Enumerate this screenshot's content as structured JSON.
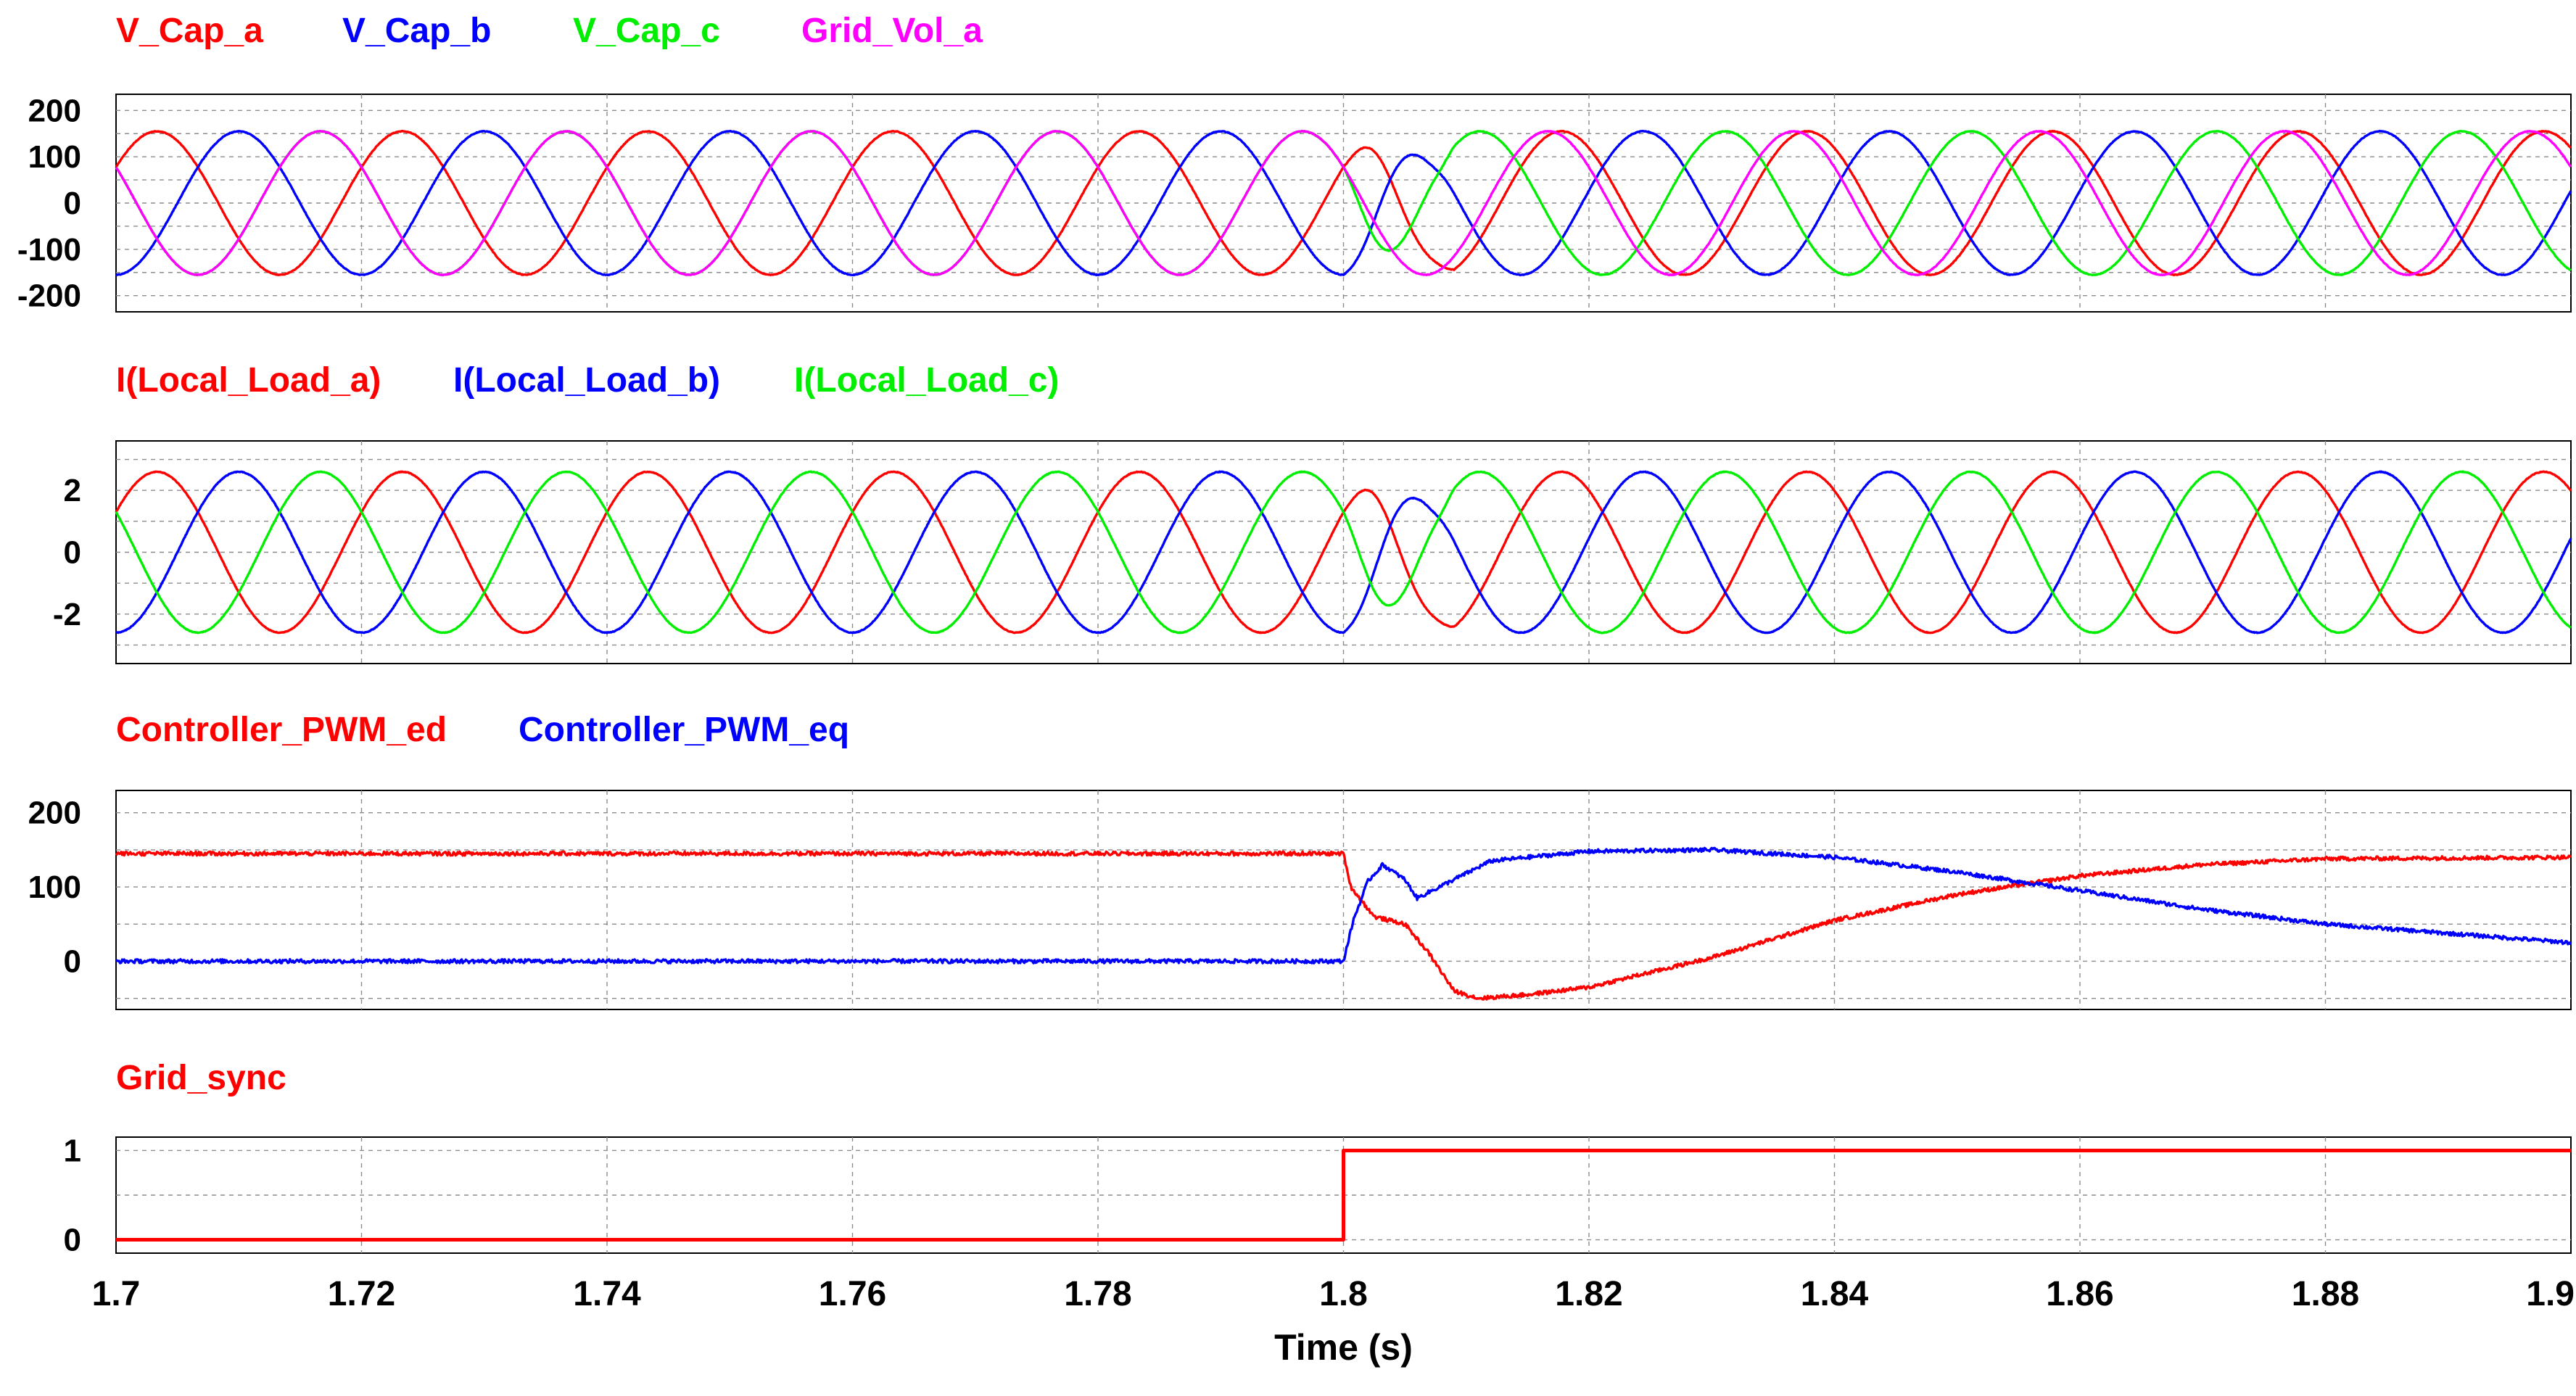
{
  "chart_data": {
    "type": "line",
    "x_axis": {
      "label": "Time (s)",
      "range": [
        1.7,
        1.9
      ],
      "ticks": [
        1.7,
        1.72,
        1.74,
        1.76,
        1.78,
        1.8,
        1.82,
        1.84,
        1.86,
        1.88,
        1.9
      ],
      "tick_labels": [
        "1.7",
        "1.72",
        "1.74",
        "1.76",
        "1.78",
        "1.8",
        "1.82",
        "1.84",
        "1.86",
        "1.88",
        "1.9"
      ]
    },
    "event_time": 1.8,
    "grid": true,
    "panels": [
      {
        "id": "capacitor-voltage",
        "ylim": [
          -235,
          235
        ],
        "yticks": [
          200,
          100,
          0,
          -100,
          -200
        ],
        "ytick_labels": [
          "200",
          "100",
          "0",
          "-100",
          "-200"
        ],
        "series": [
          {
            "name": "V_Cap_a",
            "color": "#ff0000",
            "amplitude": 155,
            "freq_hz": 50,
            "phase_deg": 30,
            "post_phase_deg": 130,
            "transient": "phase_jump"
          },
          {
            "name": "V_Cap_b",
            "color": "#0000ff",
            "amplitude": 155,
            "freq_hz": 50,
            "phase_deg": -90,
            "post_phase_deg": 10,
            "transient": "phase_jump"
          },
          {
            "name": "V_Cap_c",
            "color": "#00ee00",
            "amplitude": 155,
            "freq_hz": 50,
            "phase_deg": 150,
            "post_phase_deg": 250,
            "transient": "phase_jump"
          },
          {
            "name": "Grid_Vol_a",
            "color": "#ff00ff",
            "amplitude": 155,
            "freq_hz": 50,
            "phase_deg": 150,
            "post_phase_deg": 150,
            "transient": "none"
          }
        ]
      },
      {
        "id": "local-load-current",
        "ylim": [
          -3.6,
          3.6
        ],
        "yticks": [
          2,
          0,
          -2
        ],
        "ytick_labels": [
          "2",
          "0",
          "-2"
        ],
        "series": [
          {
            "name": "I(Local_Load_a)",
            "color": "#ff0000",
            "amplitude": 2.6,
            "freq_hz": 50,
            "phase_deg": 30,
            "post_phase_deg": 130,
            "transient": "phase_jump"
          },
          {
            "name": "I(Local_Load_b)",
            "color": "#0000ff",
            "amplitude": 2.6,
            "freq_hz": 50,
            "phase_deg": -90,
            "post_phase_deg": 10,
            "transient": "phase_jump"
          },
          {
            "name": "I(Local_Load_c)",
            "color": "#00ee00",
            "amplitude": 2.6,
            "freq_hz": 50,
            "phase_deg": 150,
            "post_phase_deg": 250,
            "transient": "phase_jump"
          }
        ]
      },
      {
        "id": "controller-pwm",
        "ylim": [
          -65,
          230
        ],
        "yticks": [
          200,
          100,
          0
        ],
        "ytick_labels": [
          "200",
          "100",
          "0"
        ],
        "series": [
          {
            "name": "Controller_PWM_ed",
            "color": "#ff0000",
            "x": [
              1.7,
              1.8,
              1.8006,
              1.8025,
              1.805,
              1.807,
              1.809,
              1.811,
              1.815,
              1.82,
              1.83,
              1.84,
              1.85,
              1.86,
              1.87,
              1.88,
              1.9
            ],
            "y": [
              145,
              145,
              100,
              60,
              50,
              10,
              -40,
              -50,
              -45,
              -35,
              5,
              55,
              90,
              115,
              130,
              138,
              140
            ]
          },
          {
            "name": "Controller_PWM_eq",
            "color": "#0000ff",
            "x": [
              1.7,
              1.8,
              1.8008,
              1.802,
              1.8032,
              1.805,
              1.806,
              1.809,
              1.812,
              1.815,
              1.82,
              1.83,
              1.84,
              1.85,
              1.86,
              1.87,
              1.88,
              1.9
            ],
            "y": [
              0,
              0,
              55,
              108,
              130,
              110,
              85,
              110,
              135,
              140,
              148,
              150,
              140,
              120,
              95,
              70,
              50,
              25
            ]
          }
        ]
      },
      {
        "id": "grid-sync",
        "ylim": [
          -0.15,
          1.15
        ],
        "yticks": [
          1,
          0
        ],
        "ytick_labels": [
          "1",
          "0"
        ],
        "series": [
          {
            "name": "Grid_sync",
            "color": "#ff0000",
            "x": [
              1.7,
              1.8,
              1.8,
              1.9
            ],
            "y": [
              0,
              0,
              1,
              1
            ]
          }
        ]
      }
    ]
  }
}
